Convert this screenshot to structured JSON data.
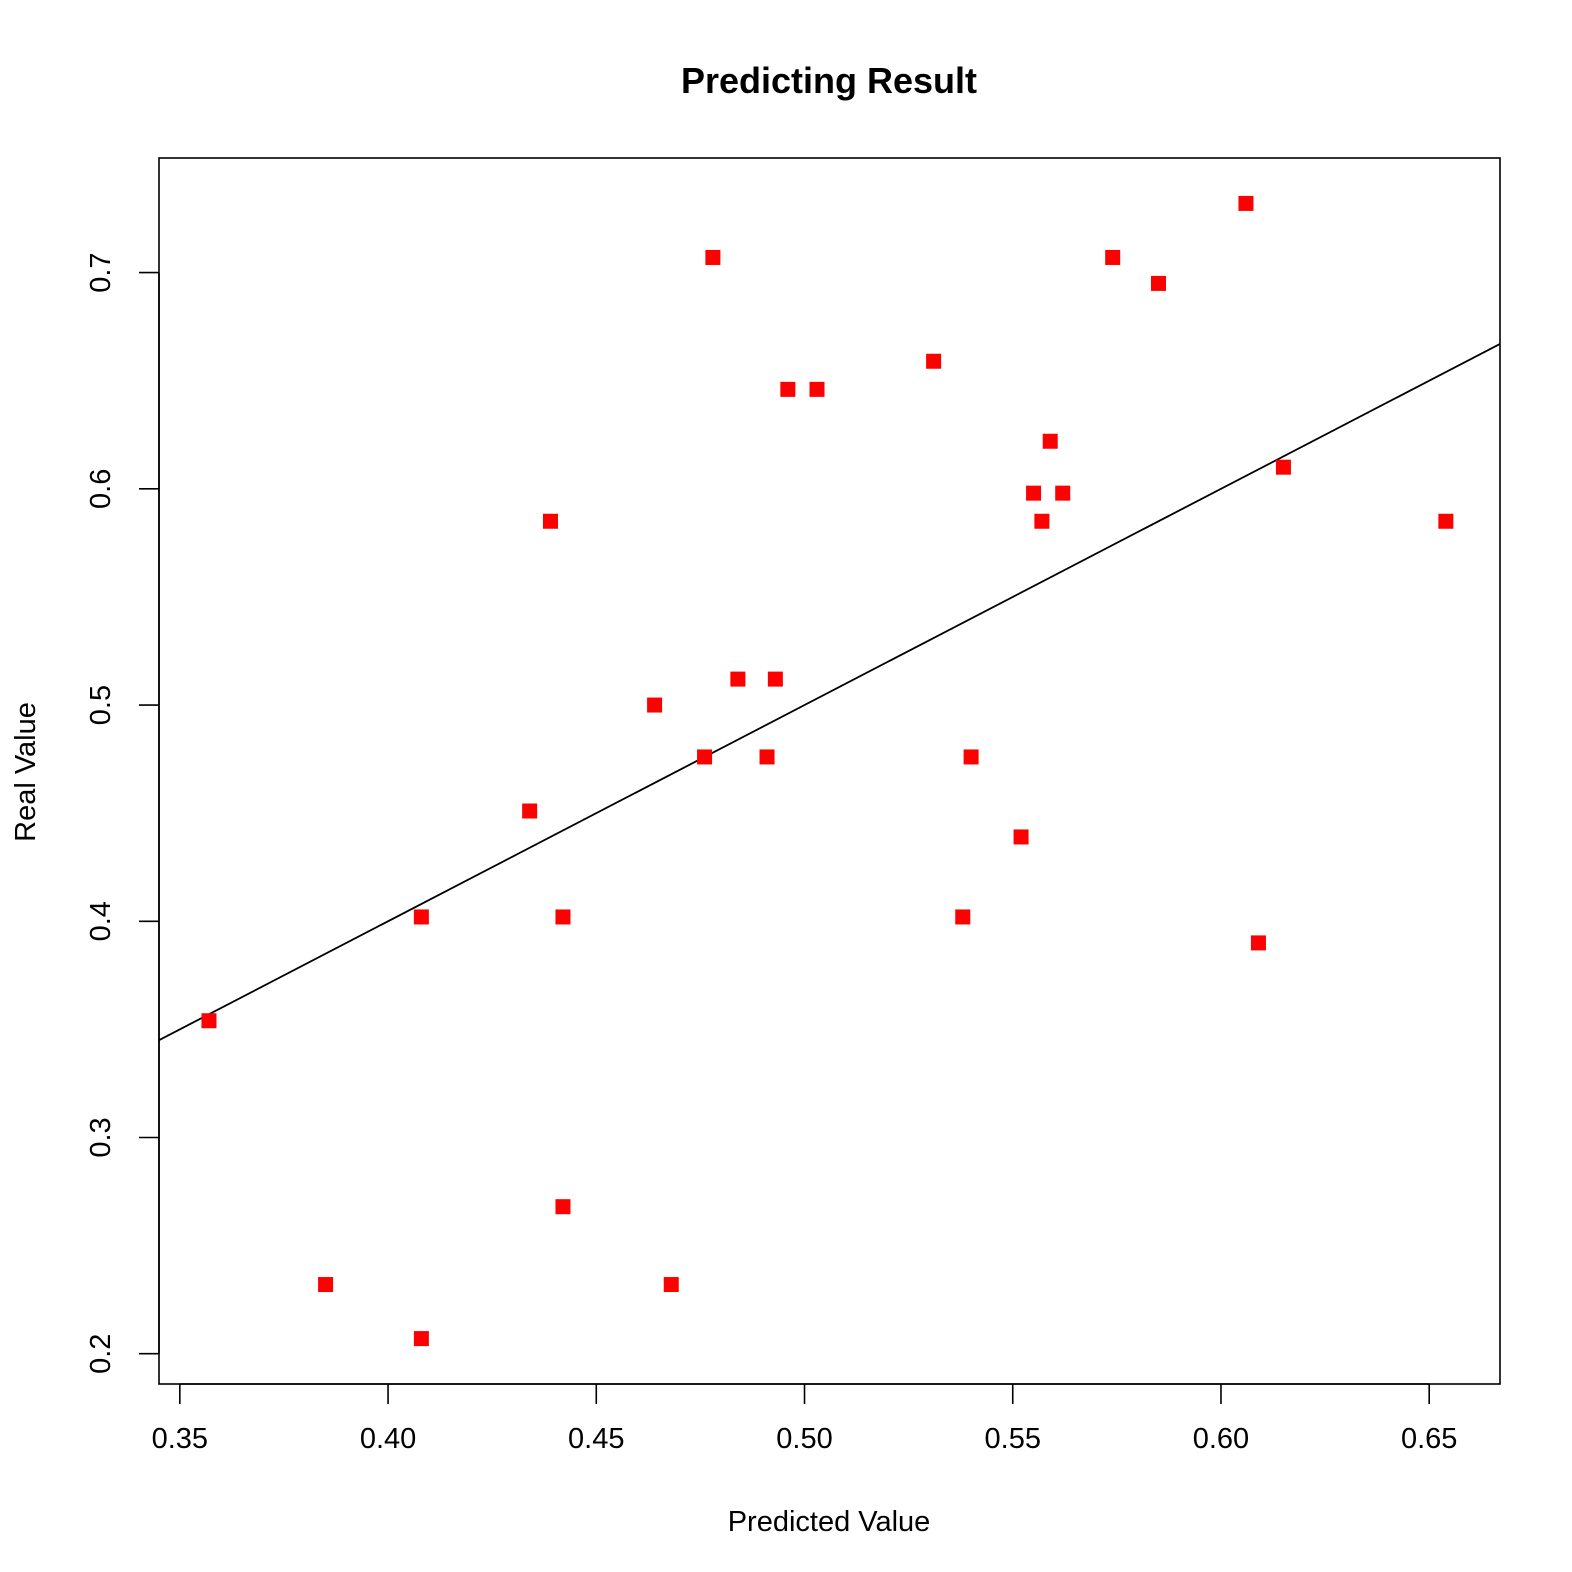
{
  "chart_data": {
    "type": "scatter",
    "title": "Predicting Result",
    "xlabel": "Predicted Value",
    "ylabel": "Real Value",
    "xlim": [
      0.345,
      0.667
    ],
    "ylim": [
      0.186,
      0.753
    ],
    "xticks": [
      0.35,
      0.4,
      0.45,
      0.5,
      0.55,
      0.6,
      0.65
    ],
    "xtick_labels": [
      "0.35",
      "0.40",
      "0.45",
      "0.50",
      "0.55",
      "0.60",
      "0.65"
    ],
    "yticks": [
      0.2,
      0.3,
      0.4,
      0.5,
      0.6,
      0.7
    ],
    "ytick_labels": [
      "0.2",
      "0.3",
      "0.4",
      "0.5",
      "0.6",
      "0.7"
    ],
    "grid": false,
    "marker_color": "#ff0000",
    "line_color": "#000000",
    "fit_line": {
      "slope": 1,
      "intercept": 0
    },
    "points": [
      {
        "x": 0.357,
        "y": 0.354
      },
      {
        "x": 0.385,
        "y": 0.232
      },
      {
        "x": 0.408,
        "y": 0.207
      },
      {
        "x": 0.408,
        "y": 0.402
      },
      {
        "x": 0.434,
        "y": 0.451
      },
      {
        "x": 0.439,
        "y": 0.585
      },
      {
        "x": 0.442,
        "y": 0.268
      },
      {
        "x": 0.442,
        "y": 0.402
      },
      {
        "x": 0.464,
        "y": 0.5
      },
      {
        "x": 0.468,
        "y": 0.232
      },
      {
        "x": 0.476,
        "y": 0.476
      },
      {
        "x": 0.478,
        "y": 0.707
      },
      {
        "x": 0.484,
        "y": 0.512
      },
      {
        "x": 0.491,
        "y": 0.476
      },
      {
        "x": 0.493,
        "y": 0.512
      },
      {
        "x": 0.496,
        "y": 0.646
      },
      {
        "x": 0.503,
        "y": 0.646
      },
      {
        "x": 0.531,
        "y": 0.659
      },
      {
        "x": 0.538,
        "y": 0.402
      },
      {
        "x": 0.54,
        "y": 0.476
      },
      {
        "x": 0.552,
        "y": 0.439
      },
      {
        "x": 0.555,
        "y": 0.598
      },
      {
        "x": 0.557,
        "y": 0.585
      },
      {
        "x": 0.559,
        "y": 0.622
      },
      {
        "x": 0.562,
        "y": 0.598
      },
      {
        "x": 0.574,
        "y": 0.707
      },
      {
        "x": 0.585,
        "y": 0.695
      },
      {
        "x": 0.606,
        "y": 0.732
      },
      {
        "x": 0.609,
        "y": 0.39
      },
      {
        "x": 0.615,
        "y": 0.61
      },
      {
        "x": 0.654,
        "y": 0.585
      }
    ]
  }
}
